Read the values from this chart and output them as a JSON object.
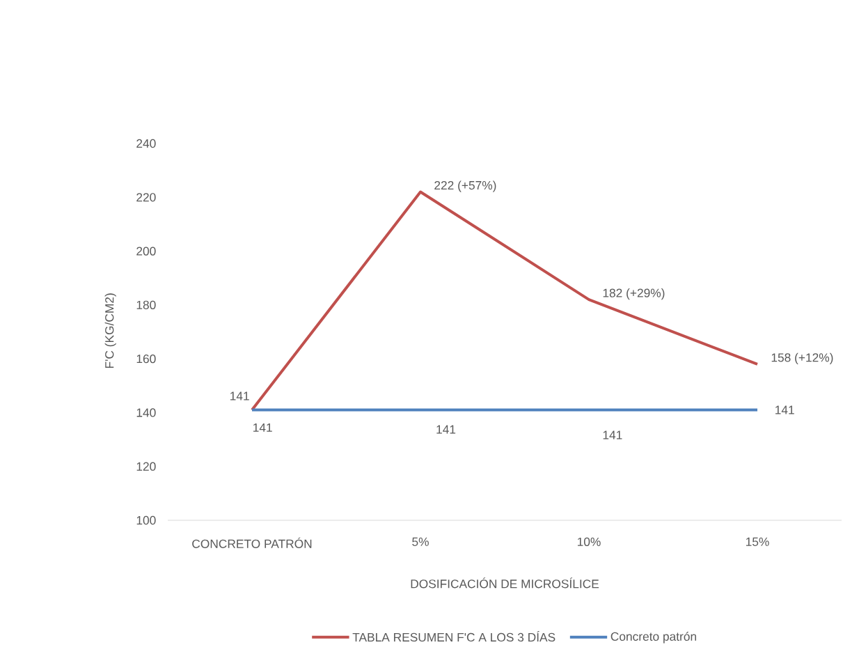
{
  "chart_data": {
    "type": "line",
    "categories": [
      "CONCRETO PATRÓN",
      "5%",
      "10%",
      "15%"
    ],
    "xlabel": "DOSIFICACIÓN DE MICROSÍLICE",
    "ylabel": "F'C (KG/CM2)",
    "ylim": [
      100,
      240
    ],
    "yticks": [
      100,
      120,
      140,
      160,
      180,
      200,
      220,
      240
    ],
    "legend": "bottom",
    "series": [
      {
        "name": "TABLA RESUMEN F'C A LOS 3 DÍAS",
        "color": "#c0504d",
        "values": [
          141,
          222,
          182,
          158
        ],
        "value_labels": [
          "141",
          "222 (+57%)",
          "182 (+29%)",
          "158 (+12%)"
        ]
      },
      {
        "name": "Concreto patrón",
        "color": "#4f81bd",
        "values": [
          141,
          141,
          141,
          141
        ],
        "value_labels": [
          "141",
          "141",
          "141",
          "141"
        ]
      }
    ]
  }
}
